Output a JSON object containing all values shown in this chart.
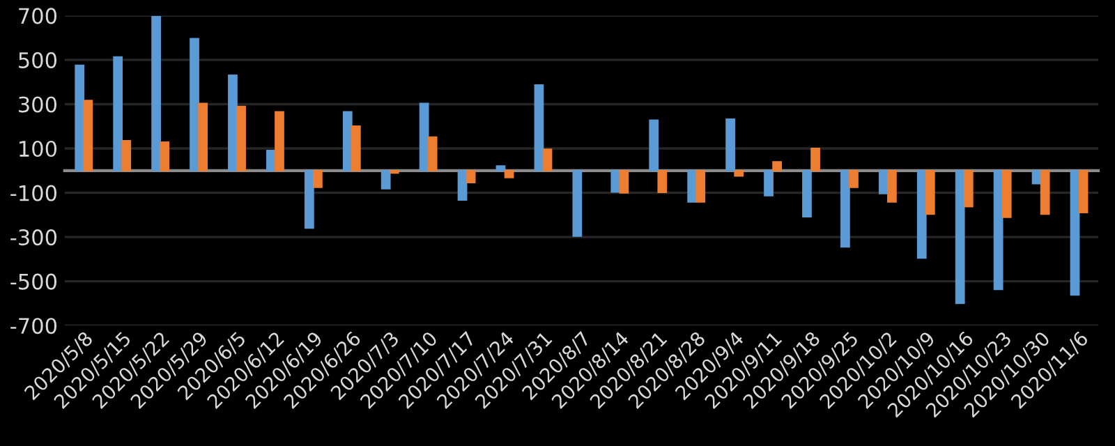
{
  "chart_data": {
    "type": "bar",
    "categories": [
      "2020/5/8",
      "2020/5/15",
      "2020/5/22",
      "2020/5/29",
      "2020/6/5",
      "2020/6/12",
      "2020/6/19",
      "2020/6/26",
      "2020/7/3",
      "2020/7/10",
      "2020/7/17",
      "2020/7/24",
      "2020/7/31",
      "2020/8/7",
      "2020/8/14",
      "2020/8/21",
      "2020/8/28",
      "2020/9/4",
      "2020/9/11",
      "2020/9/18",
      "2020/9/25",
      "2020/10/2",
      "2020/10/9",
      "2020/10/16",
      "2020/10/23",
      "2020/10/30",
      "2020/11/6"
    ],
    "series": [
      {
        "color": "#5b9bd5",
        "values": [
          476,
          514,
          696,
          596,
          431,
          91,
          -260,
          266,
          -82,
          304,
          -133,
          21,
          387,
          -296,
          -97,
          228,
          -142,
          233,
          -114,
          -209,
          -345,
          -104,
          -395,
          -600,
          -537,
          -59,
          -562
        ]
      },
      {
        "color": "#ed7d31",
        "values": [
          317,
          135,
          129,
          304,
          290,
          266,
          -76,
          201,
          -11,
          152,
          -55,
          -32,
          97,
          null,
          -101,
          -99,
          -142,
          -25,
          40,
          101,
          -76,
          -142,
          -197,
          -163,
          -211,
          -197,
          -190
        ]
      }
    ],
    "ylim": [
      -700,
      700
    ],
    "yticks": [
      -700,
      -500,
      -300,
      -100,
      100,
      300,
      500,
      700
    ],
    "grid": "y",
    "legend": false
  }
}
